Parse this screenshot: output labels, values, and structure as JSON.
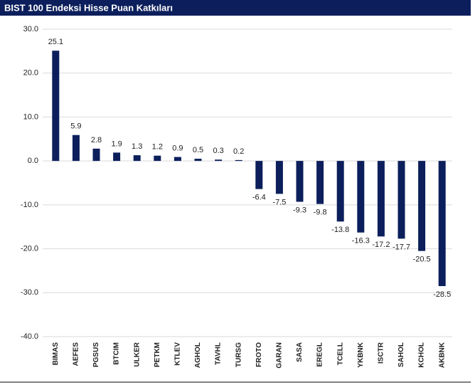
{
  "chart_data": {
    "type": "bar",
    "title": "BIST 100 Endeksi Hisse Puan Katkıları",
    "categories": [
      "BIMAS",
      "AEFES",
      "PGSUS",
      "BTCIM",
      "ULKER",
      "PETKM",
      "KTLEV",
      "AGHOL",
      "TAVHL",
      "TURSG",
      "FROTO",
      "GARAN",
      "SASA",
      "EREGL",
      "TCELL",
      "YKBNK",
      "ISCTR",
      "SAHOL",
      "KCHOL",
      "AKBNK"
    ],
    "values": [
      25.1,
      5.9,
      2.8,
      1.9,
      1.3,
      1.2,
      0.9,
      0.5,
      0.3,
      0.2,
      -6.4,
      -7.5,
      -9.3,
      -9.8,
      -13.8,
      -16.3,
      -17.2,
      -17.7,
      -20.5,
      -28.5
    ],
    "color": "#0c1f5c",
    "ylim": [
      -40,
      30
    ],
    "yticks": [
      {
        "value": -40,
        "label": "-40.0"
      },
      {
        "value": -30,
        "label": "-30.0"
      },
      {
        "value": -20,
        "label": "-20.0"
      },
      {
        "value": -10,
        "label": "-10.0"
      },
      {
        "value": 0,
        "label": "0.0"
      },
      {
        "value": 10,
        "label": "10.0"
      },
      {
        "value": 20,
        "label": "20.0"
      },
      {
        "value": 30,
        "label": "30.0"
      }
    ],
    "grid": true
  }
}
